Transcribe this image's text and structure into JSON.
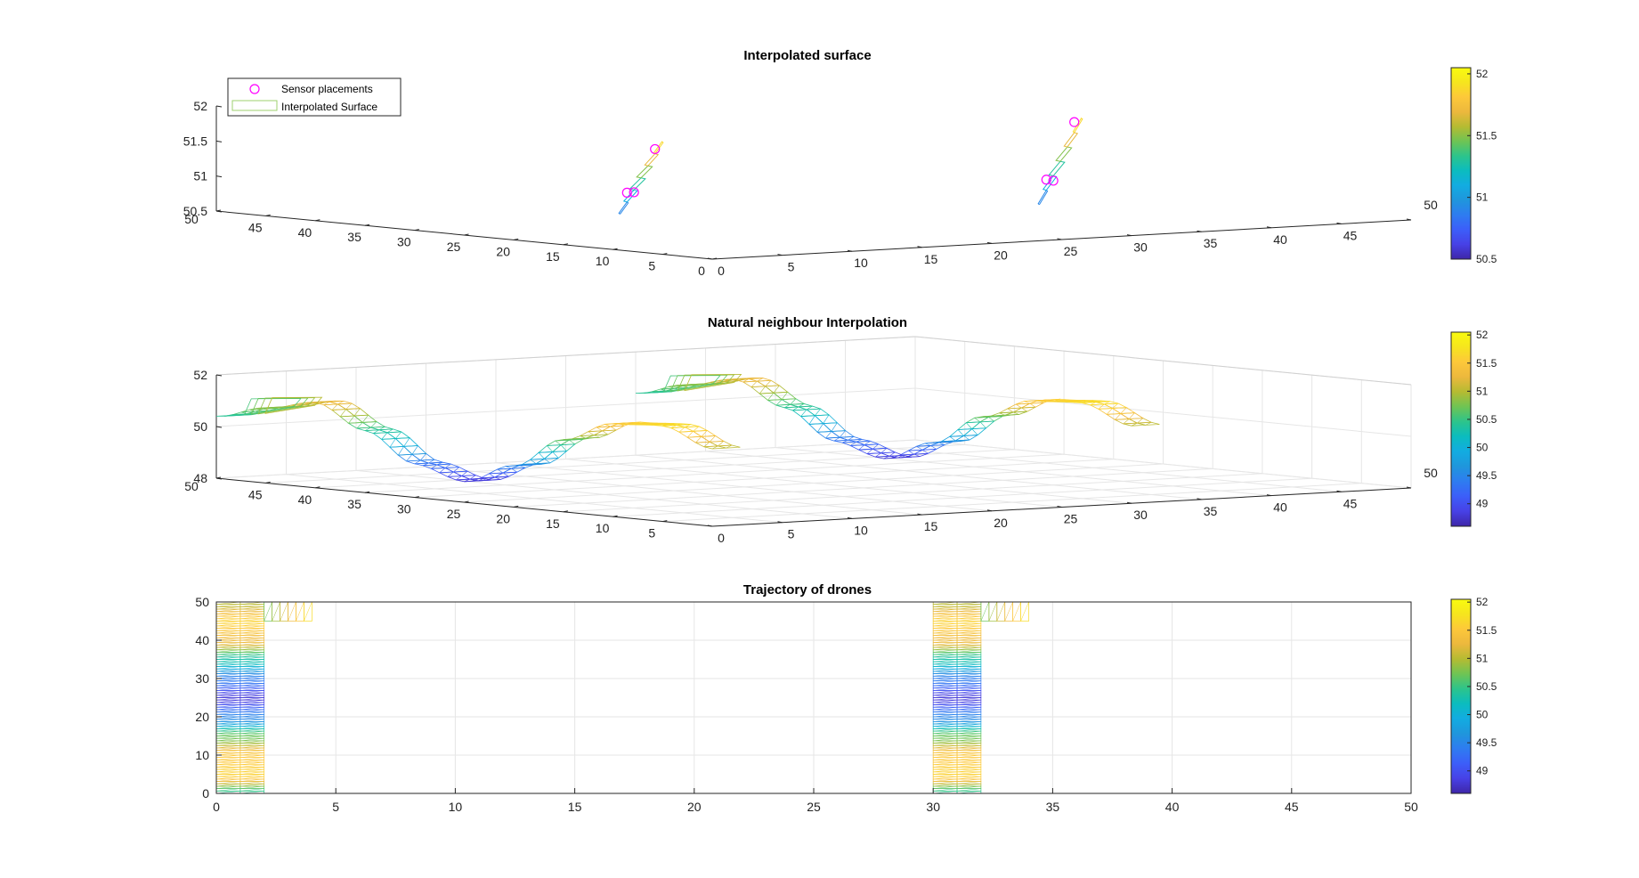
{
  "colormap": [
    "#3e26a8",
    "#4741e6",
    "#3c5ef9",
    "#2e7cf0",
    "#1f96dc",
    "#12ace1",
    "#0bbcbf",
    "#2cc48c",
    "#6ec454",
    "#b5bb32",
    "#ecb83d",
    "#fdc83a",
    "#f6e51e",
    "#f9fb0e"
  ],
  "chart_data": [
    {
      "type": "surface",
      "title": "Interpolated surface",
      "legend": {
        "placement": "top-left",
        "entries": [
          "Sensor placements",
          "Interpolated Surface"
        ]
      },
      "xlim": [
        0,
        50
      ],
      "ylim": [
        0,
        50
      ],
      "zlim": [
        50.5,
        52
      ],
      "x_ticks": [
        "0",
        "5",
        "10",
        "15",
        "20",
        "25",
        "30",
        "35",
        "40",
        "45",
        "50"
      ],
      "y_ticks": [
        "0",
        "5",
        "10",
        "15",
        "20",
        "25",
        "30",
        "35",
        "40",
        "45",
        "50"
      ],
      "z_ticks": [
        "50.5",
        "51",
        "51.5",
        "52"
      ],
      "colorbar": {
        "range": [
          50.5,
          52.05
        ],
        "ticks": [
          "50.5",
          "51",
          "51.5",
          "52"
        ]
      },
      "sensors": [
        {
          "x": 1.0,
          "y": 10,
          "z": 51.3
        },
        {
          "x": 1.5,
          "y": 10,
          "z": 51.3
        },
        {
          "x": 3.0,
          "y": 10,
          "z": 51.9
        },
        {
          "x": 31.0,
          "y": 10,
          "z": 51.15
        },
        {
          "x": 31.5,
          "y": 10,
          "z": 51.13
        },
        {
          "x": 33.0,
          "y": 10,
          "z": 51.95
        }
      ],
      "surfaces": [
        {
          "x0": 0.5,
          "x1": 3.5,
          "y": 10,
          "z0": 51.0,
          "z1": 52.0
        },
        {
          "x0": 30.5,
          "x1": 33.5,
          "y": 10,
          "z0": 50.8,
          "z1": 52.0
        }
      ]
    },
    {
      "type": "surface",
      "title": "Natural neighbour Interpolation",
      "xlim": [
        0,
        50
      ],
      "ylim": [
        0,
        50
      ],
      "zlim": [
        48,
        52
      ],
      "x_ticks": [
        "0",
        "5",
        "10",
        "15",
        "20",
        "25",
        "30",
        "35",
        "40",
        "45",
        "50"
      ],
      "y_ticks": [
        "5",
        "10",
        "15",
        "20",
        "25",
        "30",
        "35",
        "40",
        "45",
        "50"
      ],
      "z_ticks": [
        "48",
        "50",
        "52"
      ],
      "colorbar": {
        "range": [
          48.6,
          52.05
        ],
        "ticks": [
          "49",
          "49.5",
          "50",
          "50.5",
          "51",
          "51.5",
          "52"
        ]
      },
      "columns": [
        {
          "x0": 0,
          "x1": 2
        },
        {
          "x0": 30,
          "x1": 32
        }
      ],
      "profile_y": [
        0,
        5,
        10,
        15,
        20,
        25,
        30,
        35,
        40,
        45,
        50
      ],
      "profile_z": [
        51.0,
        51.7,
        51.6,
        50.8,
        49.6,
        48.8,
        49.3,
        50.4,
        51.3,
        50.9,
        50.4
      ],
      "arm": {
        "x_extent": 2,
        "y0": 45,
        "y1": 50
      }
    },
    {
      "type": "trajectory",
      "title": "Trajectory of drones",
      "xlim": [
        0,
        50
      ],
      "ylim": [
        0,
        50
      ],
      "x_ticks": [
        "0",
        "5",
        "10",
        "15",
        "20",
        "25",
        "30",
        "35",
        "40",
        "45",
        "50"
      ],
      "y_ticks": [
        "0",
        "10",
        "20",
        "30",
        "40",
        "50"
      ],
      "grid": true,
      "colorbar": {
        "range": [
          48.6,
          52.05
        ],
        "ticks": [
          "49",
          "49.5",
          "50",
          "50.5",
          "51",
          "51.5",
          "52"
        ]
      },
      "columns": [
        {
          "x0": 0,
          "x1": 2
        },
        {
          "x0": 30,
          "x1": 32
        }
      ],
      "profile_y": [
        0,
        5,
        10,
        15,
        20,
        25,
        30,
        35,
        40,
        45,
        50
      ],
      "profile_z": [
        50.4,
        51.6,
        51.5,
        50.7,
        49.5,
        48.8,
        49.4,
        50.3,
        51.3,
        51.6,
        51.0
      ],
      "arm": {
        "x_extent": 2,
        "y0": 45,
        "y1": 50
      }
    }
  ]
}
